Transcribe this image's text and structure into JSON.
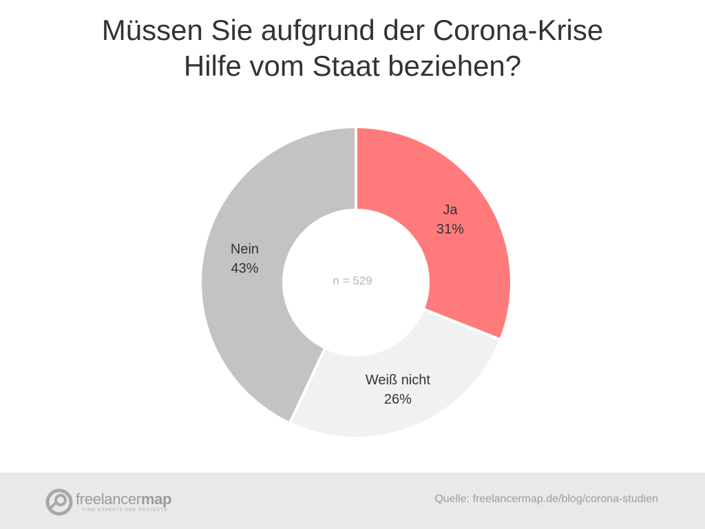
{
  "title": {
    "line1": "Müssen Sie aufgrund der Corona-Krise",
    "line2": "Hilfe vom Staat beziehen?"
  },
  "chart_data": {
    "type": "pie",
    "donut": true,
    "title": "Müssen Sie aufgrund der Corona-Krise Hilfe vom Staat beziehen?",
    "center_label": "n = 529",
    "slices": [
      {
        "label": "Ja",
        "value": 31,
        "display": "31%",
        "color": "#ff7b7b"
      },
      {
        "label": "Weiß nicht",
        "value": 26,
        "display": "26%",
        "color": "#f1f1f1"
      },
      {
        "label": "Nein",
        "value": 43,
        "display": "43%",
        "color": "#c3c3c3"
      }
    ],
    "start": "top",
    "direction": "clockwise",
    "legend": "none"
  },
  "footer": {
    "logo": {
      "word_light": "freelancer",
      "word_bold": "map",
      "tagline": "FIND EXPERTS AND PROJECTS"
    },
    "source": "Quelle: freelancermap.de/blog/corona-studien"
  },
  "colors": {
    "background": "#ffffff",
    "footer": "#e9e9e9",
    "text": "#333333",
    "muted": "#9d9d9d"
  }
}
